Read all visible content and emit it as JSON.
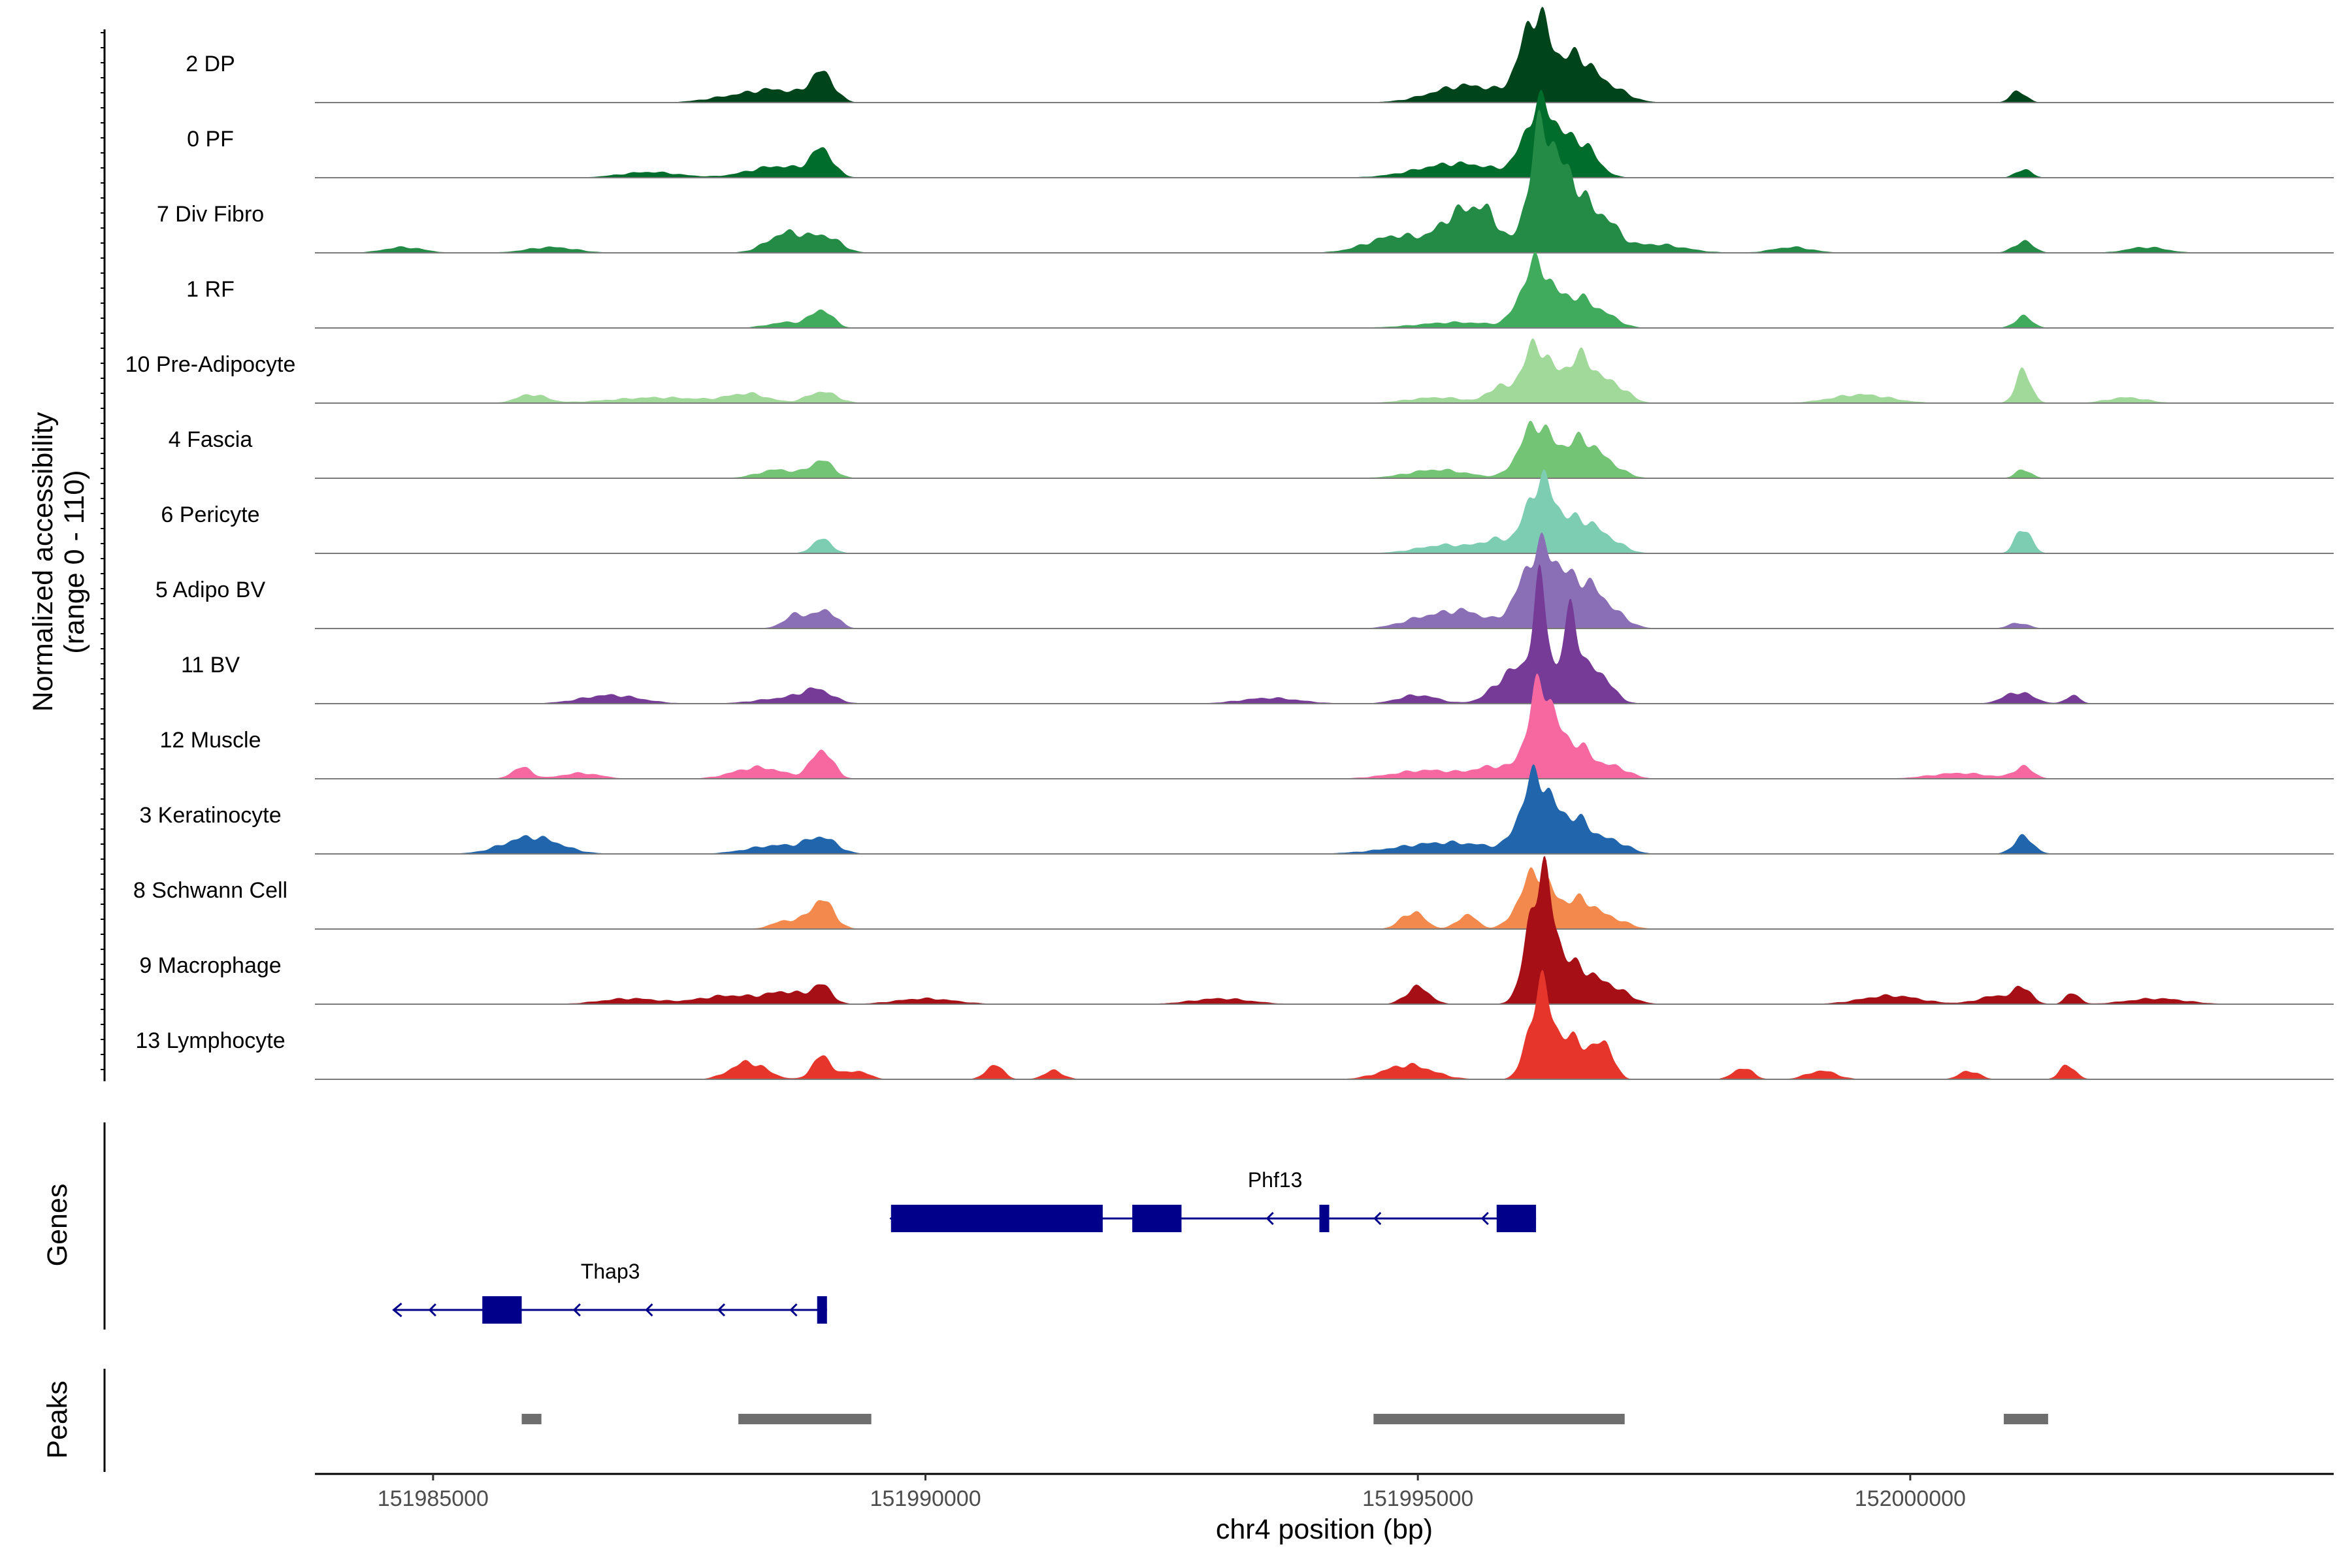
{
  "chart_data": {
    "type": "area",
    "title": "",
    "chromosome": "chr4",
    "xlabel": "chr4 position (bp)",
    "ylabel_line1": "Normalized accessibility",
    "ylabel_line2": "(range 0 - 110)",
    "y_range": [
      0,
      110
    ],
    "xlim": [
      151983800,
      152004300
    ],
    "x_ticks": [
      151985000,
      151990000,
      151995000,
      152000000
    ],
    "x_tick_labels": [
      "151985000",
      "151990000",
      "151995000",
      "152000000"
    ],
    "tracks": [
      {
        "name": "2 DP",
        "color": "#00441b",
        "peaks": [
          [
            151988050,
            2,
            280
          ],
          [
            151988500,
            4,
            250
          ],
          [
            151988950,
            10,
            120
          ],
          [
            151995500,
            6,
            350
          ],
          [
            151996200,
            30,
            150
          ],
          [
            151996600,
            14,
            150
          ],
          [
            151996900,
            6,
            200
          ],
          [
            152001100,
            4,
            80
          ]
        ]
      },
      {
        "name": "0 PF",
        "color": "#006d2c",
        "peaks": [
          [
            151987200,
            2,
            300
          ],
          [
            151988500,
            4,
            300
          ],
          [
            151988950,
            9,
            110
          ],
          [
            151995400,
            5,
            400
          ],
          [
            151996250,
            25,
            160
          ],
          [
            151996650,
            12,
            160
          ],
          [
            152001150,
            3,
            80
          ]
        ]
      },
      {
        "name": "7 Div Fibro",
        "color": "#238b45",
        "peaks": [
          [
            151984700,
            2,
            200
          ],
          [
            151986200,
            2,
            250
          ],
          [
            151988600,
            7,
            200
          ],
          [
            151989000,
            5,
            150
          ],
          [
            151994800,
            6,
            300
          ],
          [
            151995400,
            12,
            180
          ],
          [
            151995700,
            12,
            150
          ],
          [
            151996250,
            40,
            130
          ],
          [
            151996550,
            24,
            160
          ],
          [
            151996900,
            10,
            140
          ],
          [
            151997400,
            3,
            300
          ],
          [
            151998800,
            2,
            200
          ],
          [
            152001150,
            4,
            100
          ],
          [
            152002400,
            2,
            200
          ]
        ]
      },
      {
        "name": "1 RF",
        "color": "#41ab5d",
        "peaks": [
          [
            151988600,
            2,
            200
          ],
          [
            151988950,
            6,
            110
          ],
          [
            151995400,
            2,
            400
          ],
          [
            151996200,
            22,
            150
          ],
          [
            151996600,
            10,
            160
          ],
          [
            151996900,
            4,
            150
          ],
          [
            152001150,
            4,
            90
          ]
        ]
      },
      {
        "name": "10 Pre-Adipocyte",
        "color": "#a1d99b",
        "peaks": [
          [
            151986000,
            3,
            150
          ],
          [
            151987300,
            2,
            500
          ],
          [
            151988200,
            3,
            200
          ],
          [
            151988950,
            4,
            150
          ],
          [
            151995200,
            2,
            300
          ],
          [
            151995800,
            5,
            100
          ],
          [
            151996200,
            20,
            150
          ],
          [
            151996650,
            16,
            150
          ],
          [
            151997000,
            6,
            140
          ],
          [
            151999500,
            3,
            300
          ],
          [
            152001150,
            11,
            80
          ],
          [
            152002200,
            2,
            200
          ]
        ]
      },
      {
        "name": "4 Fascia",
        "color": "#74c476",
        "peaks": [
          [
            151988500,
            3,
            200
          ],
          [
            151988950,
            6,
            120
          ],
          [
            151995200,
            3,
            300
          ],
          [
            151996200,
            19,
            160
          ],
          [
            151996650,
            13,
            160
          ],
          [
            151996950,
            4,
            150
          ],
          [
            152001150,
            3,
            80
          ]
        ]
      },
      {
        "name": "6 Pericyte",
        "color": "#7dcdb3",
        "peaks": [
          [
            151988950,
            5,
            100
          ],
          [
            151995300,
            3,
            300
          ],
          [
            151995800,
            4,
            150
          ],
          [
            151996250,
            25,
            150
          ],
          [
            151996650,
            11,
            160
          ],
          [
            151996950,
            4,
            150
          ],
          [
            152001150,
            9,
            80
          ]
        ]
      },
      {
        "name": "5 Adipo BV",
        "color": "#8b6fb6",
        "peaks": [
          [
            151988700,
            5,
            130
          ],
          [
            151989000,
            6,
            110
          ],
          [
            151995100,
            4,
            250
          ],
          [
            151995500,
            5,
            200
          ],
          [
            151996250,
            28,
            200
          ],
          [
            151996700,
            14,
            170
          ],
          [
            151997000,
            4,
            150
          ],
          [
            152001100,
            2,
            100
          ]
        ]
      },
      {
        "name": "11 BV",
        "color": "#763b97",
        "peaks": [
          [
            151986800,
            3,
            300
          ],
          [
            151988600,
            2,
            300
          ],
          [
            151988900,
            4,
            150
          ],
          [
            151993500,
            2,
            300
          ],
          [
            151995000,
            3,
            200
          ],
          [
            151996000,
            12,
            200
          ],
          [
            151996250,
            36,
            80
          ],
          [
            151996550,
            30,
            80
          ],
          [
            151996800,
            12,
            150
          ],
          [
            152001100,
            4,
            150
          ],
          [
            152001650,
            3,
            70
          ]
        ]
      },
      {
        "name": "12 Muscle",
        "color": "#f768a1",
        "peaks": [
          [
            151985900,
            4,
            100
          ],
          [
            151986500,
            2,
            200
          ],
          [
            151988300,
            4,
            250
          ],
          [
            151988950,
            10,
            110
          ],
          [
            151995100,
            3,
            350
          ],
          [
            151995800,
            4,
            200
          ],
          [
            151996250,
            32,
            130
          ],
          [
            151996600,
            12,
            160
          ],
          [
            151997000,
            4,
            150
          ],
          [
            152000500,
            2,
            300
          ],
          [
            152001150,
            4,
            100
          ]
        ]
      },
      {
        "name": "3 Keratinocyte",
        "color": "#2166ac",
        "peaks": [
          [
            151986000,
            6,
            280
          ],
          [
            151988500,
            3,
            300
          ],
          [
            151988950,
            5,
            150
          ],
          [
            151995300,
            4,
            500
          ],
          [
            151996200,
            26,
            150
          ],
          [
            151996600,
            12,
            170
          ],
          [
            151997000,
            4,
            150
          ],
          [
            152001150,
            6,
            100
          ]
        ]
      },
      {
        "name": "8 Schwann Cell",
        "color": "#f4894d",
        "peaks": [
          [
            151988950,
            10,
            120
          ],
          [
            151988600,
            3,
            150
          ],
          [
            151994950,
            6,
            120
          ],
          [
            151995500,
            5,
            100
          ],
          [
            151996200,
            20,
            160
          ],
          [
            151996650,
            10,
            160
          ],
          [
            151997000,
            3,
            150
          ]
        ]
      },
      {
        "name": "9 Macrophage",
        "color": "#a50f15",
        "peaks": [
          [
            151987000,
            2,
            300
          ],
          [
            151988000,
            3,
            300
          ],
          [
            151988600,
            4,
            200
          ],
          [
            151988950,
            6,
            100
          ],
          [
            151990000,
            2,
            300
          ],
          [
            151993000,
            2,
            300
          ],
          [
            151995000,
            6,
            120
          ],
          [
            151996250,
            45,
            130
          ],
          [
            151996600,
            12,
            160
          ],
          [
            151996950,
            6,
            180
          ],
          [
            151999800,
            3,
            300
          ],
          [
            152000900,
            3,
            200
          ],
          [
            152001150,
            5,
            80
          ],
          [
            152001650,
            4,
            70
          ],
          [
            152002500,
            2,
            300
          ]
        ]
      },
      {
        "name": "13 Lymphocyte",
        "color": "#e6352a",
        "peaks": [
          [
            151988200,
            6,
            180
          ],
          [
            151988950,
            8,
            100
          ],
          [
            151989300,
            3,
            120
          ],
          [
            151990700,
            5,
            90
          ],
          [
            151991300,
            3,
            100
          ],
          [
            151994900,
            5,
            250
          ],
          [
            151996250,
            32,
            120
          ],
          [
            151996600,
            14,
            140
          ],
          [
            151996900,
            12,
            90
          ],
          [
            151998300,
            4,
            100
          ],
          [
            151999100,
            3,
            150
          ],
          [
            152000600,
            3,
            100
          ],
          [
            152001600,
            5,
            80
          ]
        ]
      }
    ],
    "genes": [
      {
        "name": "Phf13",
        "strand": "-",
        "start": 151989650,
        "end": 151996200,
        "exons": [
          [
            151989650,
            151991800
          ],
          [
            151992100,
            151992600
          ],
          [
            151994000,
            151994100
          ],
          [
            151995800,
            151996200
          ]
        ]
      },
      {
        "name": "Thap3",
        "strand": "-",
        "start": 151984600,
        "end": 151989000,
        "exons": [
          [
            151985500,
            151985900
          ],
          [
            151988900,
            151989000
          ]
        ]
      }
    ],
    "peak_regions": [
      [
        151985900,
        151986100
      ],
      [
        151988100,
        151989450
      ],
      [
        151994550,
        151997100
      ],
      [
        152000950,
        152001400
      ]
    ],
    "panel_labels": {
      "genes": "Genes",
      "peaks": "Peaks"
    }
  }
}
